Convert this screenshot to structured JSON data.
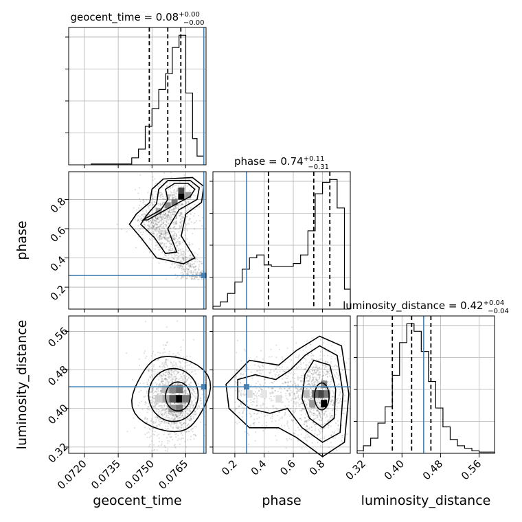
{
  "chart_data": {
    "type": "corner",
    "parameters": [
      "geocent_time",
      "phase",
      "luminosity_distance"
    ],
    "titles": [
      {
        "base": "geocent_time = 0.08",
        "sup": "+0.00",
        "sub": "−0.00"
      },
      {
        "base": "phase = 0.74",
        "sup": "+0.11",
        "sub": "−0.31"
      },
      {
        "base": "luminosity_distance = 0.42",
        "sup": "+0.04",
        "sub": "−0.04"
      }
    ],
    "ranges": {
      "geocent_time": [
        0.0713,
        0.0774
      ],
      "phase": [
        0.05,
        0.99
      ],
      "luminosity_distance": [
        0.307,
        0.592
      ]
    },
    "ticks": {
      "geocent_time": [
        "0.0720",
        "0.0735",
        "0.0750",
        "0.0765"
      ],
      "phase": [
        "0.2",
        "0.4",
        "0.6",
        "0.8"
      ],
      "luminosity_distance": [
        "0.32",
        "0.40",
        "0.48",
        "0.56"
      ]
    },
    "truths": {
      "geocent_time": 0.0773,
      "phase": 0.28,
      "luminosity_distance": 0.445
    },
    "quantiles": {
      "geocent_time": [
        0.07488,
        0.0757,
        0.07628
      ],
      "phase": [
        0.43,
        0.74,
        0.85
      ],
      "luminosity_distance": [
        0.38,
        0.42,
        0.46
      ]
    },
    "marginals": {
      "geocent_time": {
        "edges": [
          0.0723,
          0.0741,
          0.0744,
          0.0747,
          0.075,
          0.0753,
          0.0756,
          0.0759,
          0.0762,
          0.0765,
          0.0768,
          0.077,
          0.0773
        ],
        "counts": [
          0.5,
          4,
          9,
          22,
          32,
          43,
          52,
          67,
          74,
          41,
          15,
          5
        ]
      },
      "phase": {
        "edges": [
          0.05,
          0.1,
          0.15,
          0.2,
          0.25,
          0.3,
          0.35,
          0.4,
          0.45,
          0.5,
          0.55,
          0.6,
          0.65,
          0.7,
          0.75,
          0.8,
          0.85,
          0.9,
          0.95,
          0.99
        ],
        "counts": [
          2,
          5,
          11,
          19,
          28,
          36,
          38,
          31,
          30,
          30,
          30,
          32,
          38,
          55,
          81,
          89,
          91,
          71,
          14
        ]
      },
      "luminosity_distance": {
        "edges": [
          0.307,
          0.32,
          0.335,
          0.35,
          0.365,
          0.38,
          0.395,
          0.41,
          0.425,
          0.44,
          0.455,
          0.47,
          0.485,
          0.5,
          0.515,
          0.53,
          0.545,
          0.56,
          0.592
        ],
        "counts": [
          2,
          6,
          12,
          24,
          37,
          62,
          88,
          103,
          97,
          81,
          57,
          36,
          21,
          11,
          6,
          4,
          2,
          1
        ]
      }
    },
    "grid": true
  }
}
